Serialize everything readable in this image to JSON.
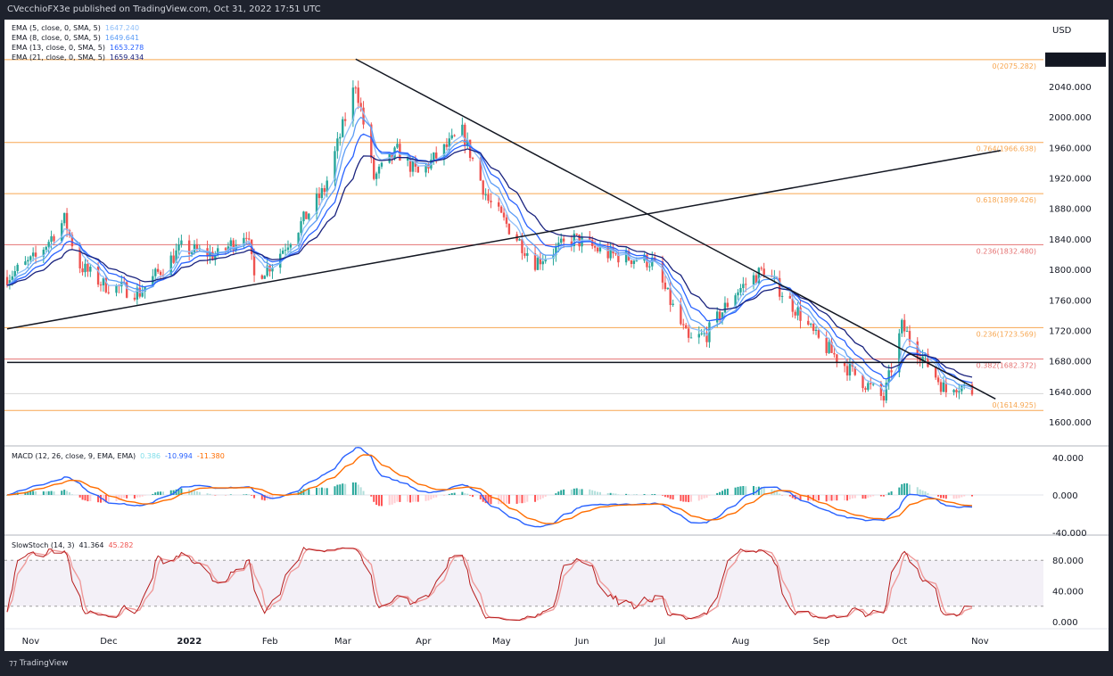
{
  "header": {
    "text": "CVecchioFX3e published on TradingView.com, Oct 31, 2022 17:51 UTC"
  },
  "footer": {
    "logo": "TradingView"
  },
  "legend": {
    "ema": [
      {
        "label": "EMA (5, close, 0, SMA, 5)",
        "value": "1647.240",
        "color": "#90bff9"
      },
      {
        "label": "EMA (8, close, 0, SMA, 5)",
        "value": "1649.641",
        "color": "#5b9cf6"
      },
      {
        "label": "EMA (13, close, 0, SMA, 5)",
        "value": "1653.278",
        "color": "#2962ff"
      },
      {
        "label": "EMA (21, close, 0, SMA, 5)",
        "value": "1659.434",
        "color": "#1a237e"
      }
    ],
    "macd": {
      "label": "MACD (12, 26, close, 9, EMA, EMA)",
      "hist": "0.386",
      "macd": "-10.994",
      "signal": "-11.380"
    },
    "stoch": {
      "label": "SlowStoch (14, 3)",
      "k": "41.364",
      "d": "45.282"
    }
  },
  "chart_data": {
    "type": "candlestick",
    "currency": "USD",
    "last_price": "2075.282",
    "price_ticks": [
      "2040.000",
      "2000.000",
      "1960.000",
      "1920.000",
      "1880.000",
      "1840.000",
      "1800.000",
      "1760.000",
      "1720.000",
      "1680.000",
      "1640.000",
      "1600.000"
    ],
    "x_ticks": [
      [
        "2021-11-01",
        "Nov"
      ],
      [
        "2021-12-01",
        "Dec"
      ],
      [
        "2022-01-01",
        "2022"
      ],
      [
        "2022-02-01",
        "Feb"
      ],
      [
        "2022-03-01",
        "Mar"
      ],
      [
        "2022-04-01",
        "Apr"
      ],
      [
        "2022-05-01",
        "May"
      ],
      [
        "2022-06-01",
        "Jun"
      ],
      [
        "2022-07-01",
        "Jul"
      ],
      [
        "2022-08-01",
        "Aug"
      ],
      [
        "2022-09-01",
        "Sep"
      ],
      [
        "2022-10-01",
        "Oct"
      ],
      [
        "2022-11-01",
        "Nov"
      ]
    ],
    "x_range": [
      "2021-10-25",
      "2022-11-11"
    ],
    "y_range": [
      1580,
      2100
    ],
    "close_keypoints": [
      [
        "2021-10-25",
        1790
      ],
      [
        "2021-11-05",
        1815
      ],
      [
        "2021-11-16",
        1865
      ],
      [
        "2021-11-22",
        1805
      ],
      [
        "2021-12-01",
        1780
      ],
      [
        "2021-12-15",
        1770
      ],
      [
        "2021-12-31",
        1828
      ],
      [
        "2022-01-14",
        1818
      ],
      [
        "2022-01-25",
        1850
      ],
      [
        "2022-01-28",
        1790
      ],
      [
        "2022-02-04",
        1808
      ],
      [
        "2022-02-15",
        1860
      ],
      [
        "2022-02-24",
        1905
      ],
      [
        "2022-03-08",
        2045
      ],
      [
        "2022-03-15",
        1920
      ],
      [
        "2022-03-24",
        1955
      ],
      [
        "2022-04-01",
        1925
      ],
      [
        "2022-04-18",
        1980
      ],
      [
        "2022-04-28",
        1890
      ],
      [
        "2022-05-16",
        1810
      ],
      [
        "2022-05-31",
        1840
      ],
      [
        "2022-06-13",
        1820
      ],
      [
        "2022-06-30",
        1810
      ],
      [
        "2022-07-14",
        1705
      ],
      [
        "2022-07-21",
        1715
      ],
      [
        "2022-08-01",
        1770
      ],
      [
        "2022-08-12",
        1800
      ],
      [
        "2022-08-26",
        1740
      ],
      [
        "2022-09-01",
        1710
      ],
      [
        "2022-09-15",
        1665
      ],
      [
        "2022-09-27",
        1630
      ],
      [
        "2022-10-04",
        1725
      ],
      [
        "2022-10-21",
        1640
      ],
      [
        "2022-10-24",
        1650
      ],
      [
        "2022-10-31",
        1640
      ]
    ],
    "fib_levels": [
      {
        "label": "0(2075.282)",
        "price": 2075.282,
        "color": "#f7a650"
      },
      {
        "label": "0.764(1966.638)",
        "price": 1966.638,
        "color": "#f7a650"
      },
      {
        "label": "0.618(1899.426)",
        "price": 1899.426,
        "color": "#f7a650"
      },
      {
        "label": "0.236(1832.480)",
        "price": 1832.48,
        "color": "#e57373"
      },
      {
        "label": "0.236(1723.569)",
        "price": 1723.569,
        "color": "#f7a650"
      },
      {
        "label": "0.382(1682.372)",
        "price": 1682.372,
        "color": "#e57373"
      },
      {
        "label": "0(1614.925)",
        "price": 1614.925,
        "color": "#f7a650"
      }
    ],
    "trendlines": [
      {
        "name": "downtrend",
        "from": [
          "2022-03-08",
          2076
        ],
        "to": [
          "2022-11-09",
          1630
        ]
      },
      {
        "name": "uptrend",
        "from": [
          "2021-10-25",
          1722
        ],
        "to": [
          "2022-11-11",
          1956
        ]
      },
      {
        "name": "horizontal-support",
        "from": [
          "2021-10-25",
          1678
        ],
        "to": [
          "2022-11-11",
          1678
        ]
      }
    ],
    "colors": {
      "up": "#26a69a",
      "down": "#ef5350",
      "macd": "#2962ff",
      "signal": "#ff6d00",
      "stoch_k": "#b71c1c",
      "stoch_d": "#ef9a9a"
    },
    "macd_ticks": [
      "40.000",
      "0.000",
      "-40.000"
    ],
    "stoch_ticks": [
      "80.000",
      "40.000",
      "0.000"
    ],
    "stoch_bands": [
      20,
      80
    ]
  }
}
